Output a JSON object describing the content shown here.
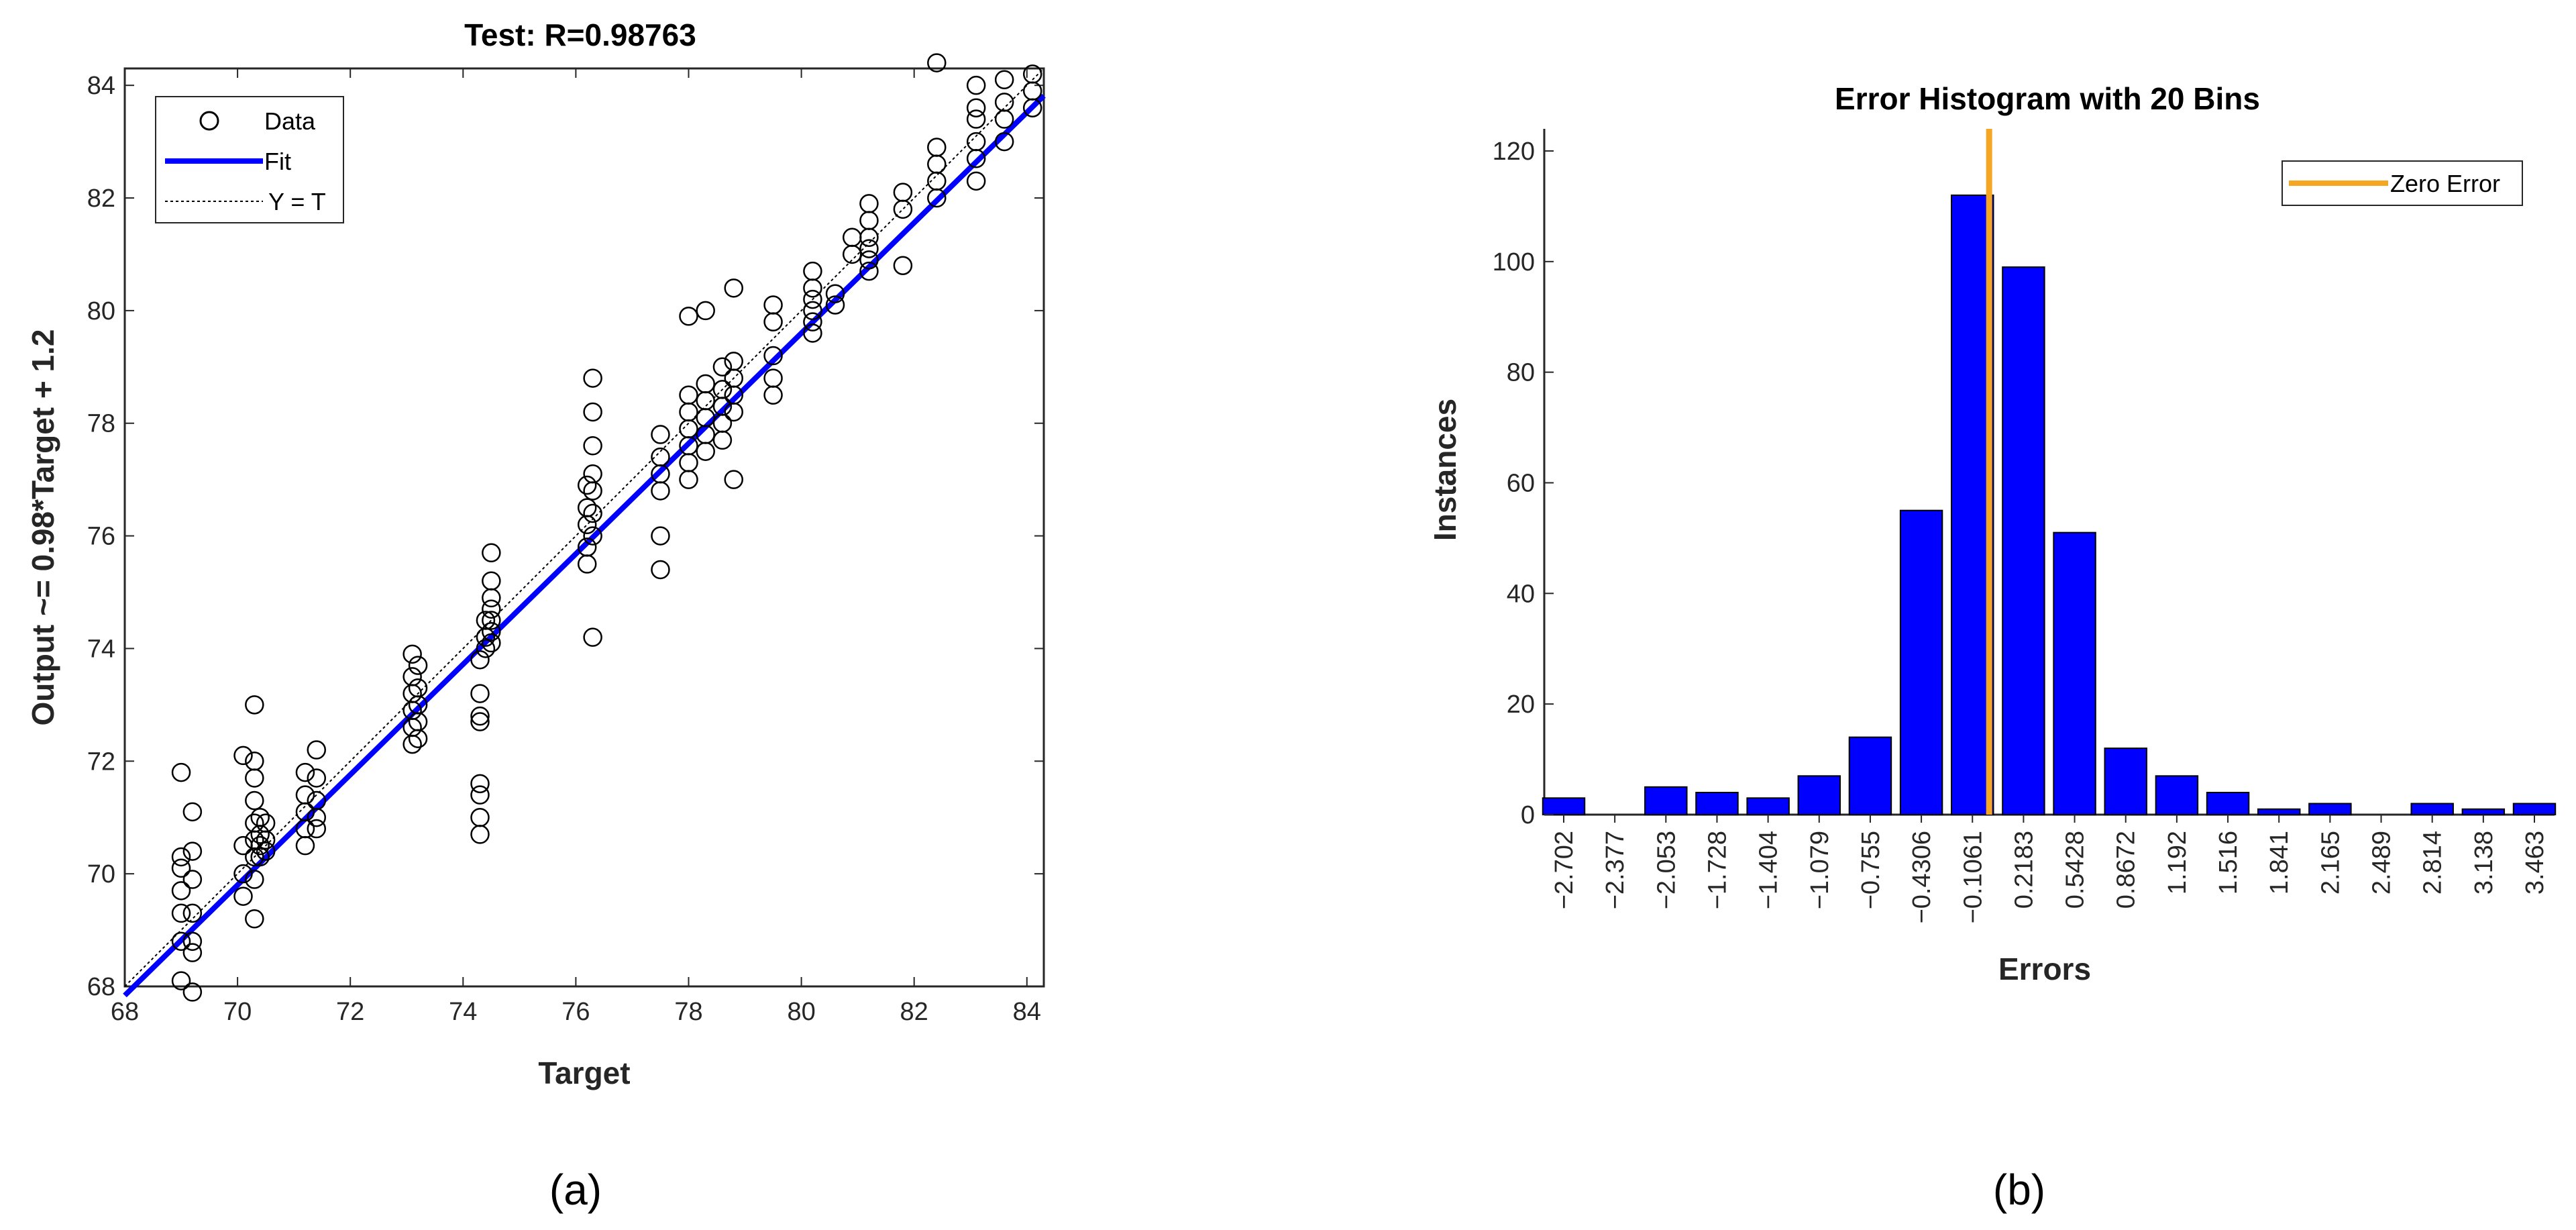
{
  "panels": {
    "a_caption": "(a)",
    "b_caption": "(b)"
  },
  "chart_data": [
    {
      "type": "scatter",
      "title": "Test: R=0.98763",
      "xlabel": "Target",
      "ylabel": "Output ~= 0.98*Target + 1.2",
      "xlim": [
        68,
        84.3
      ],
      "ylim": [
        68,
        84.3
      ],
      "x_ticks": [
        "68",
        "70",
        "72",
        "74",
        "76",
        "78",
        "80",
        "82",
        "84"
      ],
      "y_ticks": [
        "68",
        "70",
        "72",
        "74",
        "76",
        "78",
        "80",
        "82",
        "84"
      ],
      "legend": {
        "position": "top-left",
        "entries": [
          {
            "label": "Data",
            "style": "circle",
            "color": "#000000"
          },
          {
            "label": "Fit",
            "style": "solid",
            "color": "#0000ff"
          },
          {
            "label": "Y = T",
            "style": "dotted",
            "color": "#000000"
          }
        ]
      },
      "fit": {
        "slope": 0.98,
        "intercept": 1.2,
        "color": "#0000ff"
      },
      "identity_line": {
        "color": "#000000"
      },
      "grid": false,
      "series": [
        {
          "marker": "open-circle",
          "color": "#000000",
          "points": [
            [
              69.0,
              71.8
            ],
            [
              69.0,
              70.3
            ],
            [
              69.0,
              70.1
            ],
            [
              69.0,
              69.7
            ],
            [
              69.0,
              69.3
            ],
            [
              69.0,
              68.8
            ],
            [
              69.0,
              68.1
            ],
            [
              69.2,
              71.1
            ],
            [
              69.2,
              70.4
            ],
            [
              69.2,
              69.9
            ],
            [
              69.2,
              69.3
            ],
            [
              69.2,
              68.8
            ],
            [
              69.2,
              68.6
            ],
            [
              69.2,
              67.9
            ],
            [
              70.1,
              72.1
            ],
            [
              70.1,
              70.5
            ],
            [
              70.1,
              70.0
            ],
            [
              70.1,
              69.6
            ],
            [
              70.3,
              73.0
            ],
            [
              70.3,
              72.0
            ],
            [
              70.3,
              71.7
            ],
            [
              70.3,
              71.3
            ],
            [
              70.3,
              70.9
            ],
            [
              70.3,
              70.6
            ],
            [
              70.3,
              70.3
            ],
            [
              70.3,
              69.9
            ],
            [
              70.3,
              69.2
            ],
            [
              70.4,
              71.0
            ],
            [
              70.4,
              70.7
            ],
            [
              70.4,
              70.5
            ],
            [
              70.4,
              70.3
            ],
            [
              70.5,
              70.9
            ],
            [
              70.5,
              70.6
            ],
            [
              70.5,
              70.4
            ],
            [
              71.2,
              71.8
            ],
            [
              71.2,
              71.4
            ],
            [
              71.2,
              71.1
            ],
            [
              71.2,
              70.8
            ],
            [
              71.2,
              70.5
            ],
            [
              71.4,
              72.2
            ],
            [
              71.4,
              71.7
            ],
            [
              71.4,
              71.3
            ],
            [
              71.4,
              71.0
            ],
            [
              71.4,
              70.8
            ],
            [
              73.1,
              73.9
            ],
            [
              73.1,
              73.5
            ],
            [
              73.1,
              73.2
            ],
            [
              73.1,
              72.9
            ],
            [
              73.1,
              72.6
            ],
            [
              73.1,
              72.3
            ],
            [
              73.2,
              73.7
            ],
            [
              73.2,
              73.3
            ],
            [
              73.2,
              73.0
            ],
            [
              73.2,
              72.7
            ],
            [
              73.2,
              72.4
            ],
            [
              74.3,
              73.8
            ],
            [
              74.3,
              73.2
            ],
            [
              74.3,
              72.8
            ],
            [
              74.3,
              72.7
            ],
            [
              74.3,
              71.6
            ],
            [
              74.3,
              71.4
            ],
            [
              74.3,
              71.0
            ],
            [
              74.3,
              70.7
            ],
            [
              74.4,
              74.5
            ],
            [
              74.4,
              74.2
            ],
            [
              74.4,
              74.0
            ],
            [
              74.5,
              75.7
            ],
            [
              74.5,
              75.2
            ],
            [
              74.5,
              74.9
            ],
            [
              74.5,
              74.7
            ],
            [
              74.5,
              74.5
            ],
            [
              74.5,
              74.3
            ],
            [
              74.5,
              74.1
            ],
            [
              76.2,
              76.9
            ],
            [
              76.2,
              76.5
            ],
            [
              76.2,
              76.2
            ],
            [
              76.2,
              75.8
            ],
            [
              76.2,
              75.5
            ],
            [
              76.3,
              78.8
            ],
            [
              76.3,
              78.2
            ],
            [
              76.3,
              77.6
            ],
            [
              76.3,
              77.1
            ],
            [
              76.3,
              76.8
            ],
            [
              76.3,
              76.4
            ],
            [
              76.3,
              76.0
            ],
            [
              76.3,
              74.2
            ],
            [
              77.5,
              77.8
            ],
            [
              77.5,
              77.4
            ],
            [
              77.5,
              77.1
            ],
            [
              77.5,
              76.8
            ],
            [
              77.5,
              76.0
            ],
            [
              77.5,
              75.4
            ],
            [
              78.0,
              79.9
            ],
            [
              78.0,
              78.5
            ],
            [
              78.0,
              78.2
            ],
            [
              78.0,
              77.9
            ],
            [
              78.0,
              77.6
            ],
            [
              78.0,
              77.3
            ],
            [
              78.0,
              77.0
            ],
            [
              78.3,
              80.0
            ],
            [
              78.3,
              78.7
            ],
            [
              78.3,
              78.4
            ],
            [
              78.3,
              78.1
            ],
            [
              78.3,
              77.8
            ],
            [
              78.3,
              77.5
            ],
            [
              78.6,
              79.0
            ],
            [
              78.6,
              78.6
            ],
            [
              78.6,
              78.3
            ],
            [
              78.6,
              78.0
            ],
            [
              78.6,
              77.7
            ],
            [
              78.8,
              80.4
            ],
            [
              78.8,
              79.1
            ],
            [
              78.8,
              78.8
            ],
            [
              78.8,
              78.5
            ],
            [
              78.8,
              78.2
            ],
            [
              78.8,
              77.0
            ],
            [
              79.5,
              80.1
            ],
            [
              79.5,
              79.8
            ],
            [
              79.5,
              79.2
            ],
            [
              79.5,
              78.8
            ],
            [
              79.5,
              78.5
            ],
            [
              80.2,
              80.7
            ],
            [
              80.2,
              80.4
            ],
            [
              80.2,
              80.2
            ],
            [
              80.2,
              80.0
            ],
            [
              80.2,
              79.8
            ],
            [
              80.2,
              79.6
            ],
            [
              80.6,
              80.3
            ],
            [
              80.6,
              80.1
            ],
            [
              81.2,
              81.9
            ],
            [
              81.2,
              81.6
            ],
            [
              81.2,
              81.3
            ],
            [
              81.2,
              81.1
            ],
            [
              81.2,
              80.9
            ],
            [
              81.2,
              80.7
            ],
            [
              80.9,
              81.3
            ],
            [
              80.9,
              81.0
            ],
            [
              81.8,
              82.1
            ],
            [
              81.8,
              81.8
            ],
            [
              81.8,
              80.8
            ],
            [
              82.4,
              84.4
            ],
            [
              82.4,
              82.9
            ],
            [
              82.4,
              82.6
            ],
            [
              82.4,
              82.3
            ],
            [
              82.4,
              82.0
            ],
            [
              83.1,
              84.0
            ],
            [
              83.1,
              83.6
            ],
            [
              83.1,
              83.4
            ],
            [
              83.1,
              83.0
            ],
            [
              83.1,
              82.7
            ],
            [
              83.1,
              82.3
            ],
            [
              83.6,
              84.1
            ],
            [
              83.6,
              83.7
            ],
            [
              83.6,
              83.4
            ],
            [
              83.6,
              83.0
            ],
            [
              84.1,
              84.2
            ],
            [
              84.1,
              83.9
            ],
            [
              84.1,
              83.6
            ]
          ]
        }
      ]
    },
    {
      "type": "bar",
      "title": "Error Histogram with 20 Bins",
      "xlabel": "Errors",
      "ylabel": "Instances",
      "ylim": [
        0,
        124
      ],
      "y_ticks": [
        "0",
        "20",
        "40",
        "60",
        "80",
        "100",
        "120"
      ],
      "categories": [
        "−2.702",
        "−2.377",
        "−2.053",
        "−1.728",
        "−1.404",
        "−1.079",
        "−0.755",
        "−0.4306",
        "−0.1061",
        "0.2183",
        "0.5428",
        "0.8672",
        "1.192",
        "1.516",
        "1.841",
        "2.165",
        "2.489",
        "2.814",
        "3.138",
        "3.463"
      ],
      "values": [
        3,
        0,
        5,
        4,
        3,
        7,
        14,
        55,
        112,
        99,
        51,
        12,
        7,
        4,
        1,
        2,
        0,
        2,
        1,
        2
      ],
      "bar_color": "#0000ff",
      "zero_error": {
        "label": "Zero Error",
        "color": "#f5a623",
        "position": 0
      },
      "legend": {
        "position": "top-right",
        "entries": [
          {
            "label": "Zero Error",
            "color": "#f5a623"
          }
        ]
      },
      "grid": false
    }
  ]
}
